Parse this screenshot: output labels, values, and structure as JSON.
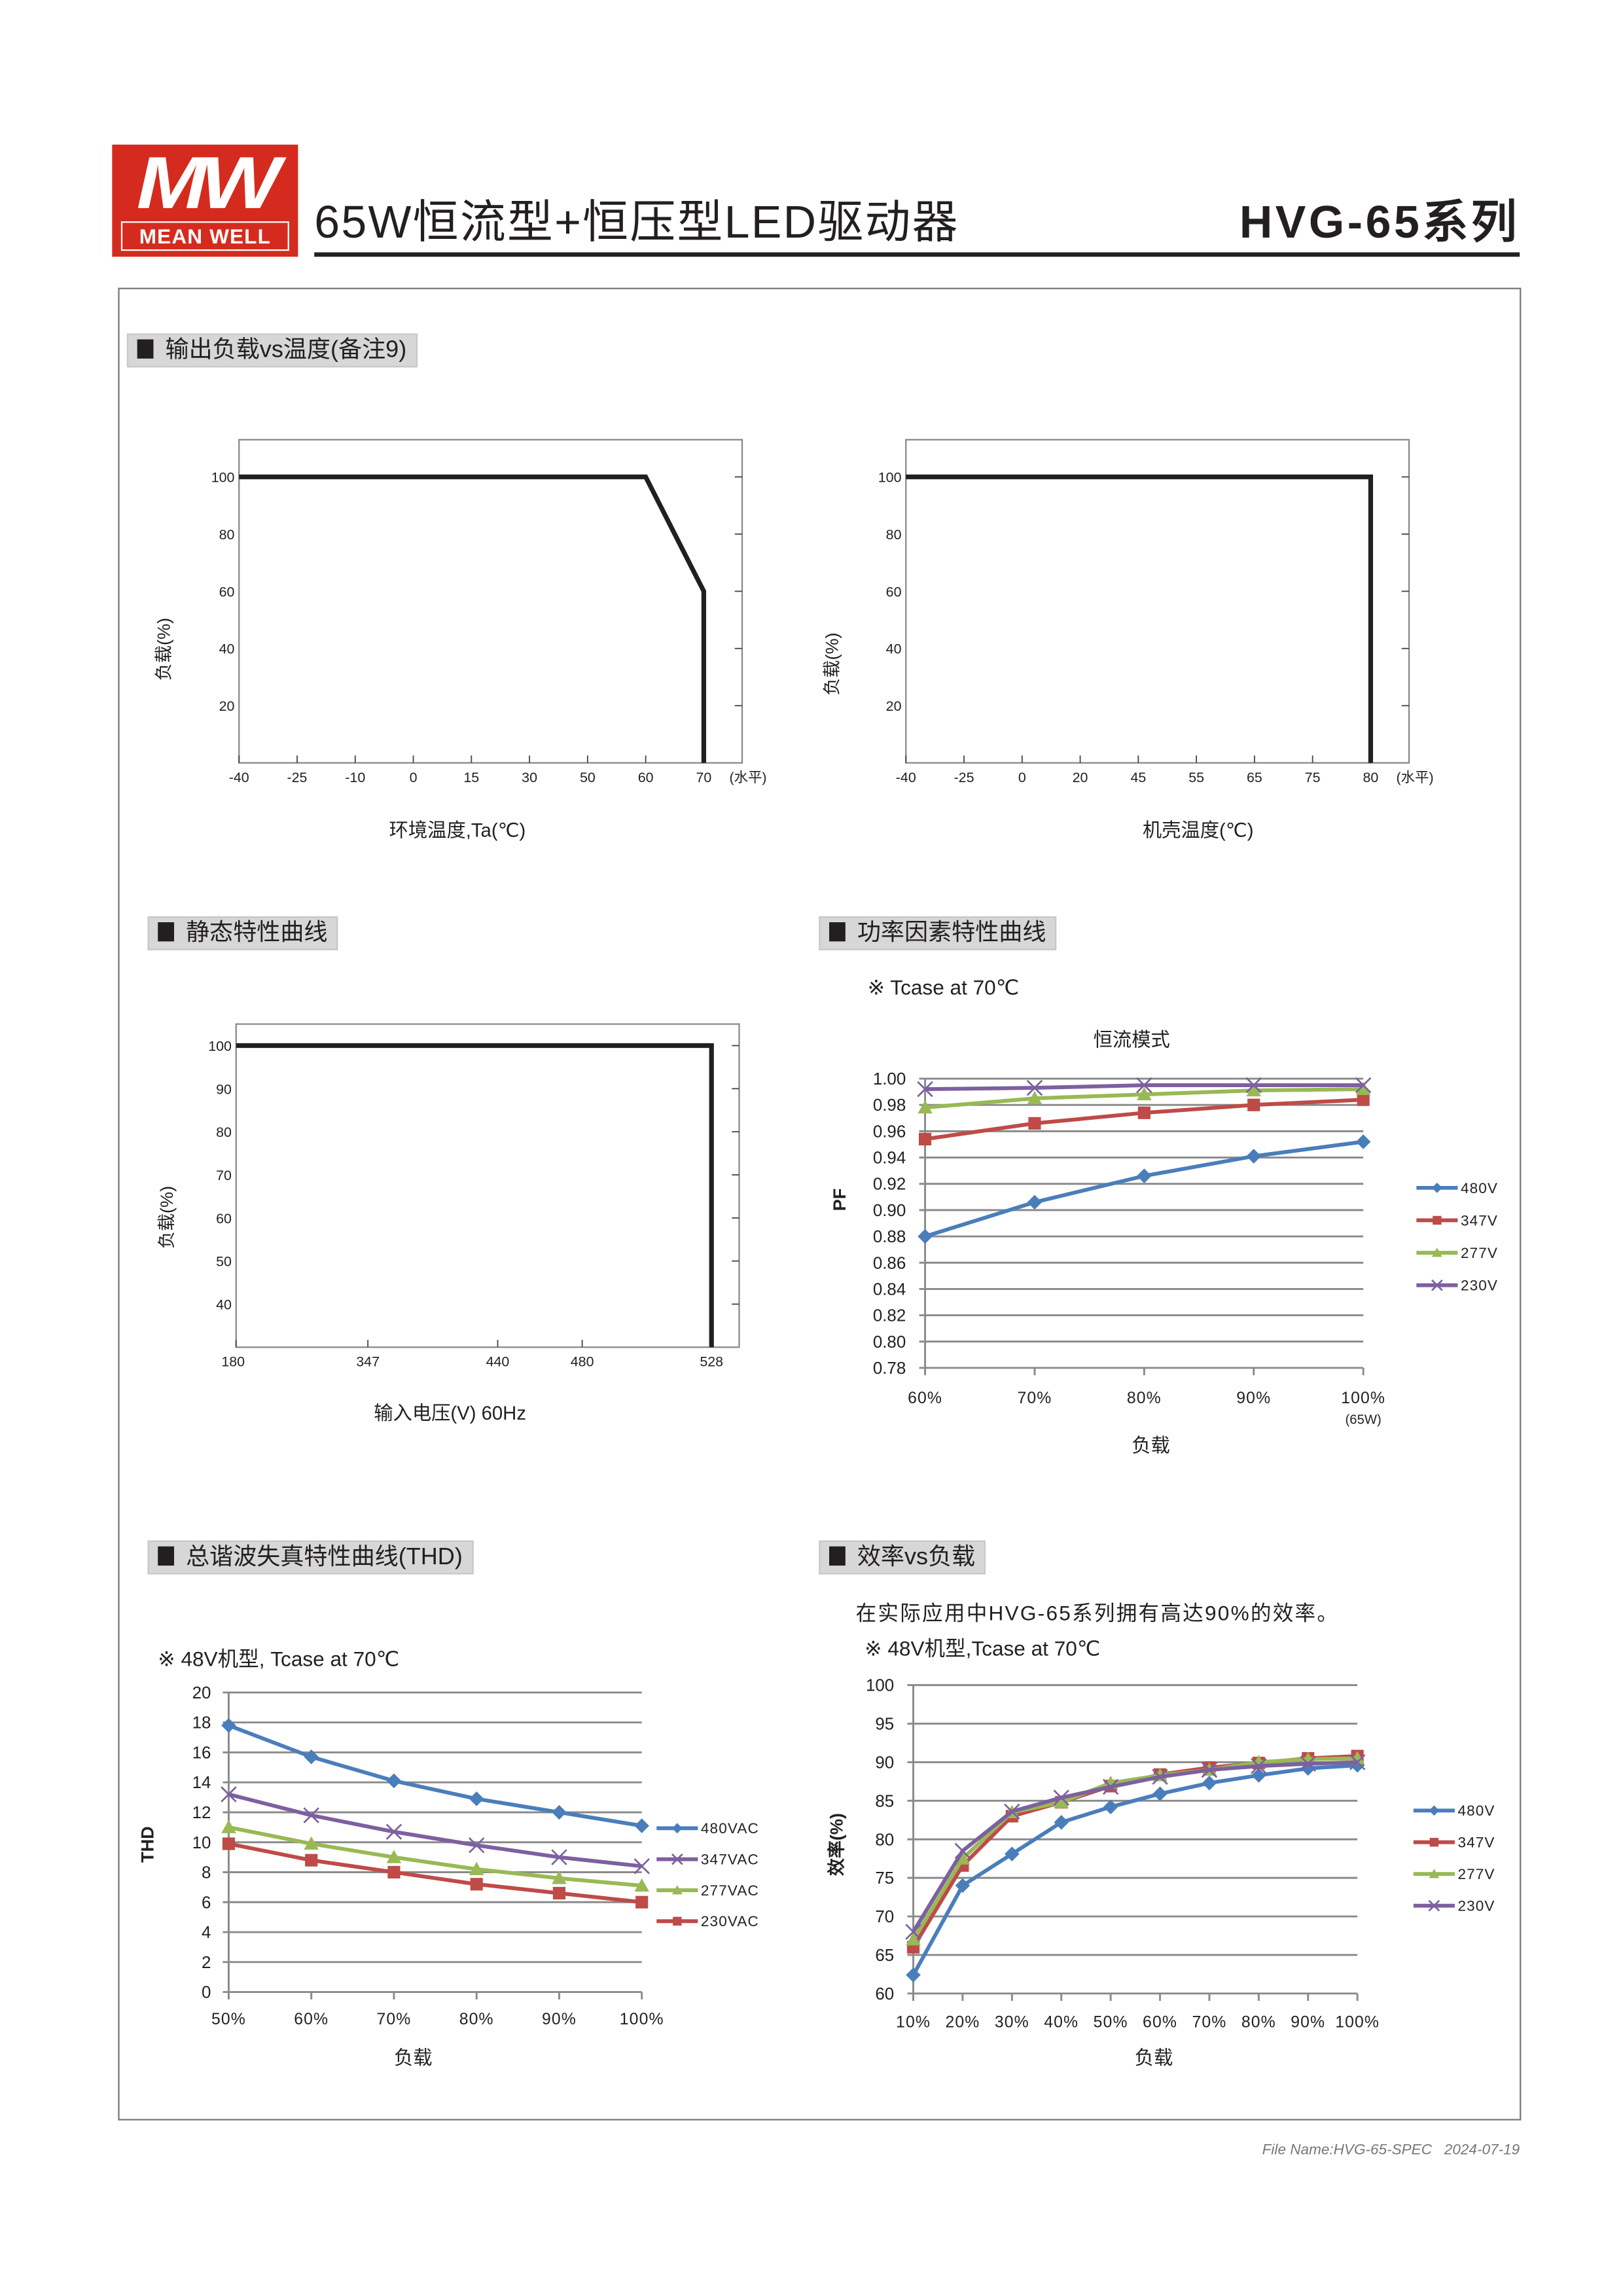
{
  "header": {
    "logo_text": "MW",
    "logo_name": "MEAN WELL",
    "title": "65W恒流型+恒压型LED驱动器",
    "series": "HVG-65系列"
  },
  "sections": {
    "derating": "输出负载vs温度(备注9)",
    "static": "静态特性曲线",
    "pf": "功率因素特性曲线",
    "thd": "总谐波失真特性曲线(THD)",
    "efficiency": "效率vs负载"
  },
  "notes": {
    "pf_condition": "※ Tcase at 70℃",
    "thd_condition": "※ 48V机型, Tcase at 70℃",
    "eff_claim": "在实际应用中HVG-65系列拥有高达90%的效率。",
    "eff_condition": "※ 48V机型,Tcase at 70℃"
  },
  "footer": {
    "file_name": "File Name:HVG-65-SPEC",
    "date": "2024-07-19"
  },
  "colors": {
    "brand": "#d52b1e",
    "s480": "#4a7ebb",
    "s347": "#be4b48",
    "s277": "#98b954",
    "s230": "#7d60a0"
  },
  "chart_data": [
    {
      "id": "ambient",
      "type": "line",
      "xlabel": "环境温度,Ta(℃)",
      "ylabel": "负载(%)",
      "x_ticks": [
        -40,
        -25,
        -10,
        0,
        15,
        30,
        50,
        60,
        70
      ],
      "x_unit_label": "(水平)",
      "y_ticks": [
        20,
        40,
        60,
        80,
        100
      ],
      "ylim": [
        0,
        113
      ],
      "series": [
        {
          "points": [
            [
              -40,
              100
            ],
            [
              60,
              100
            ],
            [
              70,
              60
            ],
            [
              70,
              0
            ]
          ]
        }
      ]
    },
    {
      "id": "case",
      "type": "line",
      "xlabel": "机壳温度(℃)",
      "ylabel": "负载(%)",
      "x_ticks": [
        -40,
        -25,
        0,
        20,
        45,
        55,
        65,
        75,
        80
      ],
      "x_unit_label": "(水平)",
      "y_ticks": [
        20,
        40,
        60,
        80,
        100
      ],
      "ylim": [
        0,
        113
      ],
      "series": [
        {
          "points": [
            [
              -40,
              100
            ],
            [
              80,
              100
            ],
            [
              80,
              0
            ]
          ]
        }
      ]
    },
    {
      "id": "static",
      "type": "line",
      "xlabel": "输入电压(V) 60Hz",
      "ylabel": "负载(%)",
      "x_ticks": [
        180,
        347,
        440,
        480,
        528
      ],
      "y_ticks": [
        40,
        50,
        60,
        70,
        80,
        90,
        100
      ],
      "ylim": [
        30,
        105
      ],
      "series": [
        {
          "points": [
            [
              180,
              100
            ],
            [
              528,
              100
            ],
            [
              528,
              30
            ]
          ]
        }
      ]
    },
    {
      "id": "pf",
      "type": "line",
      "title": "恒流模式",
      "xlabel": "负载",
      "ylabel": "PF",
      "categories": [
        "60%",
        "70%",
        "80%",
        "90%",
        "100%"
      ],
      "category_sublabel": {
        "100%": "(65W)"
      },
      "y_ticks": [
        0.78,
        0.8,
        0.82,
        0.84,
        0.86,
        0.88,
        0.9,
        0.92,
        0.94,
        0.96,
        0.98,
        1.0
      ],
      "ylim": [
        0.78,
        1.0
      ],
      "grid": true,
      "legend": "right",
      "series": [
        {
          "name": "480V",
          "color": "#4a7ebb",
          "marker": "diamond",
          "values": [
            0.88,
            0.906,
            0.926,
            0.941,
            0.952
          ]
        },
        {
          "name": "347V",
          "color": "#be4b48",
          "marker": "square",
          "values": [
            0.954,
            0.966,
            0.974,
            0.98,
            0.984
          ]
        },
        {
          "name": "277V",
          "color": "#98b954",
          "marker": "triangle",
          "values": [
            0.978,
            0.985,
            0.988,
            0.991,
            0.992
          ]
        },
        {
          "name": "230V",
          "color": "#7d60a0",
          "marker": "x",
          "values": [
            0.992,
            0.993,
            0.995,
            0.995,
            0.995
          ]
        }
      ]
    },
    {
      "id": "thd",
      "type": "line",
      "xlabel": "负载",
      "ylabel": "THD",
      "categories": [
        "50%",
        "60%",
        "70%",
        "80%",
        "90%",
        "100%"
      ],
      "y_ticks": [
        0,
        2,
        4,
        6,
        8,
        10,
        12,
        14,
        16,
        18,
        20
      ],
      "ylim": [
        0,
        20
      ],
      "grid": true,
      "legend": "right",
      "series": [
        {
          "name": "480VAC",
          "color": "#4a7ebb",
          "marker": "diamond",
          "values": [
            17.8,
            15.7,
            14.1,
            12.9,
            12.0,
            11.1
          ]
        },
        {
          "name": "347VAC",
          "color": "#7d60a0",
          "marker": "x",
          "values": [
            13.2,
            11.8,
            10.7,
            9.8,
            9.0,
            8.4
          ]
        },
        {
          "name": "277VAC",
          "color": "#98b954",
          "marker": "triangle",
          "values": [
            11.0,
            9.9,
            9.0,
            8.2,
            7.6,
            7.1
          ]
        },
        {
          "name": "230VAC",
          "color": "#be4b48",
          "marker": "square",
          "values": [
            9.9,
            8.8,
            8.0,
            7.2,
            6.6,
            6.0
          ]
        }
      ]
    },
    {
      "id": "efficiency",
      "type": "line",
      "xlabel": "负载",
      "ylabel": "效率(%)",
      "categories": [
        "10%",
        "20%",
        "30%",
        "40%",
        "50%",
        "60%",
        "70%",
        "80%",
        "90%",
        "100%"
      ],
      "y_ticks": [
        60,
        65,
        70,
        75,
        80,
        85,
        90,
        95,
        100
      ],
      "ylim": [
        60,
        100
      ],
      "grid": true,
      "legend": "right",
      "series": [
        {
          "name": "480V",
          "color": "#4a7ebb",
          "marker": "diamond",
          "values": [
            62.4,
            74.0,
            78.1,
            82.2,
            84.2,
            85.9,
            87.3,
            88.3,
            89.2,
            89.6
          ]
        },
        {
          "name": "347V",
          "color": "#be4b48",
          "marker": "square",
          "values": [
            66.0,
            76.6,
            83.0,
            84.8,
            86.9,
            88.4,
            89.3,
            89.9,
            90.5,
            90.8
          ]
        },
        {
          "name": "277V",
          "color": "#98b954",
          "marker": "triangle",
          "values": [
            67.0,
            77.5,
            83.5,
            84.8,
            87.3,
            88.3,
            89.0,
            90.0,
            90.4,
            90.5
          ]
        },
        {
          "name": "230V",
          "color": "#7d60a0",
          "marker": "x",
          "values": [
            68.0,
            78.5,
            83.6,
            85.4,
            86.8,
            88.1,
            89.0,
            89.5,
            89.8,
            90.0
          ]
        }
      ]
    }
  ]
}
